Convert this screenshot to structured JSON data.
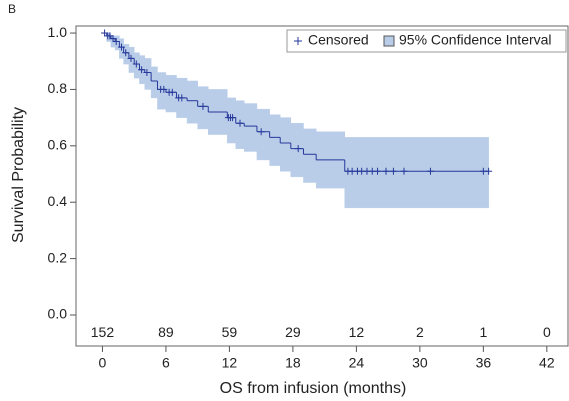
{
  "chart_data": {
    "type": "kaplan-meier",
    "panel_label": "B",
    "x_label": "OS from infusion (months)",
    "y_label": "Survival Probability",
    "xlim": [
      -2.5,
      44
    ],
    "xticks": [
      0,
      6,
      12,
      18,
      24,
      30,
      36,
      42
    ],
    "ylim": [
      -0.11,
      1.025
    ],
    "yticks": [
      {
        "value": 0,
        "label": "0.0"
      },
      {
        "value": 0.2,
        "label": "0.2"
      },
      {
        "value": 0.4,
        "label": "0.4"
      },
      {
        "value": 0.6,
        "label": "0.6"
      },
      {
        "value": 0.8,
        "label": "0.8"
      },
      {
        "value": 1,
        "label": "1.0"
      }
    ],
    "color": "#26389a",
    "band_color": "#b9cde9",
    "legend": {
      "position": "upper right",
      "censored": "Censored",
      "band": "95% Confidence Interval"
    },
    "x": [
      0,
      0.4,
      0.8,
      1.2,
      1.6,
      2.0,
      2.5,
      3.0,
      3.5,
      4.0,
      4.6,
      5.2,
      6.0,
      7.0,
      8.0,
      9.0,
      10.0,
      11.8,
      12.6,
      13.4,
      14.6,
      15.8,
      16.8,
      17.8,
      19.0,
      20.2,
      22.9,
      36.5
    ],
    "survival": [
      1.0,
      0.99,
      0.98,
      0.97,
      0.95,
      0.93,
      0.91,
      0.89,
      0.87,
      0.86,
      0.83,
      0.8,
      0.79,
      0.77,
      0.76,
      0.74,
      0.72,
      0.7,
      0.68,
      0.67,
      0.65,
      0.63,
      0.61,
      0.59,
      0.57,
      0.55,
      0.51,
      0.51
    ],
    "lower": [
      1.0,
      0.97,
      0.95,
      0.94,
      0.91,
      0.89,
      0.86,
      0.84,
      0.82,
      0.8,
      0.77,
      0.73,
      0.72,
      0.7,
      0.68,
      0.66,
      0.64,
      0.61,
      0.59,
      0.58,
      0.55,
      0.53,
      0.51,
      0.49,
      0.47,
      0.45,
      0.38,
      0.38
    ],
    "upper": [
      1.0,
      1.0,
      0.99,
      0.99,
      0.98,
      0.96,
      0.95,
      0.93,
      0.92,
      0.91,
      0.88,
      0.86,
      0.85,
      0.84,
      0.83,
      0.81,
      0.8,
      0.77,
      0.76,
      0.75,
      0.73,
      0.71,
      0.7,
      0.68,
      0.66,
      0.65,
      0.63,
      0.63
    ],
    "censored": {
      "x": [
        0.2,
        0.5,
        0.7,
        1.0,
        1.3,
        1.8,
        2.2,
        2.7,
        3.2,
        3.7,
        4.2,
        5.5,
        5.8,
        6.3,
        6.6,
        7.2,
        7.5,
        9.5,
        11.9,
        12.1,
        12.3,
        13.0,
        15.0,
        18.5,
        23.2,
        23.6,
        24.1,
        24.5,
        25.0,
        25.5,
        26.0,
        26.8,
        27.5,
        28.5,
        31.0,
        36.0,
        36.5
      ],
      "y": [
        1.0,
        0.99,
        0.99,
        0.98,
        0.97,
        0.95,
        0.93,
        0.91,
        0.89,
        0.87,
        0.86,
        0.8,
        0.8,
        0.79,
        0.79,
        0.77,
        0.77,
        0.74,
        0.7,
        0.7,
        0.7,
        0.68,
        0.65,
        0.59,
        0.51,
        0.51,
        0.51,
        0.51,
        0.51,
        0.51,
        0.51,
        0.51,
        0.51,
        0.51,
        0.51,
        0.51,
        0.51
      ]
    },
    "at_risk": {
      "x": [
        0,
        6,
        12,
        18,
        24,
        30,
        36,
        42
      ],
      "y": -0.065,
      "counts": [
        152,
        89,
        59,
        29,
        12,
        2,
        1,
        0
      ]
    }
  }
}
